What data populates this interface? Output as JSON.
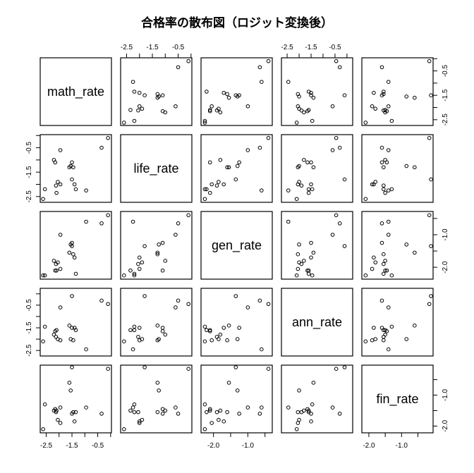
{
  "title": "合格率の散布図（ロジット変換後）",
  "chart_data": {
    "type": "scatter",
    "subtype": "scatterplot-matrix",
    "title": "合格率の散布図（ロジット変換後）",
    "variables": [
      "math_rate",
      "life_rate",
      "gen_rate",
      "ann_rate",
      "fin_rate"
    ],
    "axes": {
      "math_rate": {
        "ticks": [
          -2.5,
          -2.0,
          -1.5,
          -1.0,
          -0.5,
          0.0
        ],
        "labels": [
          "-2.5",
          "-1.5",
          "-0.5"
        ],
        "range": [
          -2.65,
          -0.05
        ]
      },
      "life_rate": {
        "ticks": [
          -2.5,
          -2.0,
          -1.5,
          -1.0,
          -0.5,
          0.0
        ],
        "labels": [
          "-2.5",
          "-1.5",
          "-0.5"
        ],
        "range": [
          -2.65,
          -0.05
        ]
      },
      "gen_rate": {
        "ticks": [
          -2.0,
          -1.5,
          -1.0,
          -0.5
        ],
        "labels": [
          "-2.0",
          "-1.0"
        ],
        "range": [
          -2.3,
          -0.35
        ]
      },
      "ann_rate": {
        "ticks": [
          -2.5,
          -2.0,
          -1.5,
          -1.0,
          -0.5,
          0.0
        ],
        "labels": [
          "-2.5",
          "-1.5",
          "-0.5"
        ],
        "range": [
          -2.65,
          0.15
        ]
      },
      "fin_rate": {
        "ticks": [
          -2.0,
          -1.5,
          -1.0,
          -0.5
        ],
        "labels": [
          "-2.0",
          "-1.0"
        ],
        "range": [
          -2.15,
          -0.1
        ]
      }
    },
    "tick_label_positions": {
      "top": [
        "life_rate",
        "ann_rate"
      ],
      "bottom": [
        "math_rate",
        "gen_rate",
        "fin_rate"
      ],
      "left": [
        "life_rate",
        "ann_rate"
      ],
      "right": [
        "math_rate",
        "gen_rate",
        "fin_rate"
      ]
    },
    "points": [
      {
        "math_rate": -2.62,
        "life_rate": -2.6,
        "gen_rate": -2.25,
        "ann_rate": -2.1,
        "fin_rate": -2.1
      },
      {
        "math_rate": -2.55,
        "life_rate": -2.2,
        "gen_rate": -2.25,
        "ann_rate": -1.45,
        "fin_rate": -1.3
      },
      {
        "math_rate": -2.1,
        "life_rate": -2.35,
        "gen_rate": -2.1,
        "ann_rate": -1.6,
        "fin_rate": -1.5
      },
      {
        "math_rate": -2.12,
        "life_rate": -2.05,
        "gen_rate": -1.9,
        "ann_rate": -1.9,
        "fin_rate": -1.55
      },
      {
        "math_rate": -2.05,
        "life_rate": -1.9,
        "gen_rate": -1.85,
        "ann_rate": -2.0,
        "fin_rate": -1.8
      },
      {
        "math_rate": -2.2,
        "life_rate": -1.0,
        "gen_rate": -1.8,
        "ann_rate": -1.8,
        "fin_rate": -1.5
      },
      {
        "math_rate": -2.15,
        "life_rate": -1.1,
        "gen_rate": -2.1,
        "ann_rate": -1.65,
        "fin_rate": -1.45
      },
      {
        "math_rate": -1.95,
        "life_rate": -0.6,
        "gen_rate": -1.0,
        "ann_rate": -0.6,
        "fin_rate": -1.4
      },
      {
        "math_rate": -1.95,
        "life_rate": -2.0,
        "gen_rate": -2.05,
        "ann_rate": -2.05,
        "fin_rate": -1.9
      },
      {
        "math_rate": -1.6,
        "life_rate": -1.3,
        "gen_rate": -1.55,
        "ann_rate": -1.4,
        "fin_rate": -0.6
      },
      {
        "math_rate": -1.55,
        "life_rate": -1.25,
        "gen_rate": -1.3,
        "ann_rate": -2.0,
        "fin_rate": -0.85
      },
      {
        "math_rate": -1.5,
        "life_rate": -1.1,
        "gen_rate": -1.25,
        "ann_rate": -1.5,
        "fin_rate": -1.6
      },
      {
        "math_rate": -1.45,
        "life_rate": -1.3,
        "gen_rate": -1.6,
        "ann_rate": -2.05,
        "fin_rate": -1.55
      },
      {
        "math_rate": -1.4,
        "life_rate": -2.0,
        "gen_rate": -1.7,
        "ann_rate": -1.5,
        "fin_rate": -1.85
      },
      {
        "math_rate": -1.35,
        "life_rate": -2.2,
        "gen_rate": -2.2,
        "ann_rate": -1.6,
        "fin_rate": -1.55
      },
      {
        "math_rate": -1.5,
        "life_rate": -1.8,
        "gen_rate": -1.35,
        "ann_rate": -0.1,
        "fin_rate": -0.1
      },
      {
        "math_rate": -0.95,
        "life_rate": -2.25,
        "gen_rate": -0.6,
        "ann_rate": -2.45,
        "fin_rate": -1.4
      },
      {
        "math_rate": -0.35,
        "life_rate": -0.5,
        "gen_rate": -0.65,
        "ann_rate": -0.3,
        "fin_rate": -1.6
      },
      {
        "math_rate": -0.1,
        "life_rate": -0.1,
        "gen_rate": -0.4,
        "ann_rate": -0.45,
        "fin_rate": -0.15
      }
    ],
    "grid": false,
    "legend": null
  }
}
